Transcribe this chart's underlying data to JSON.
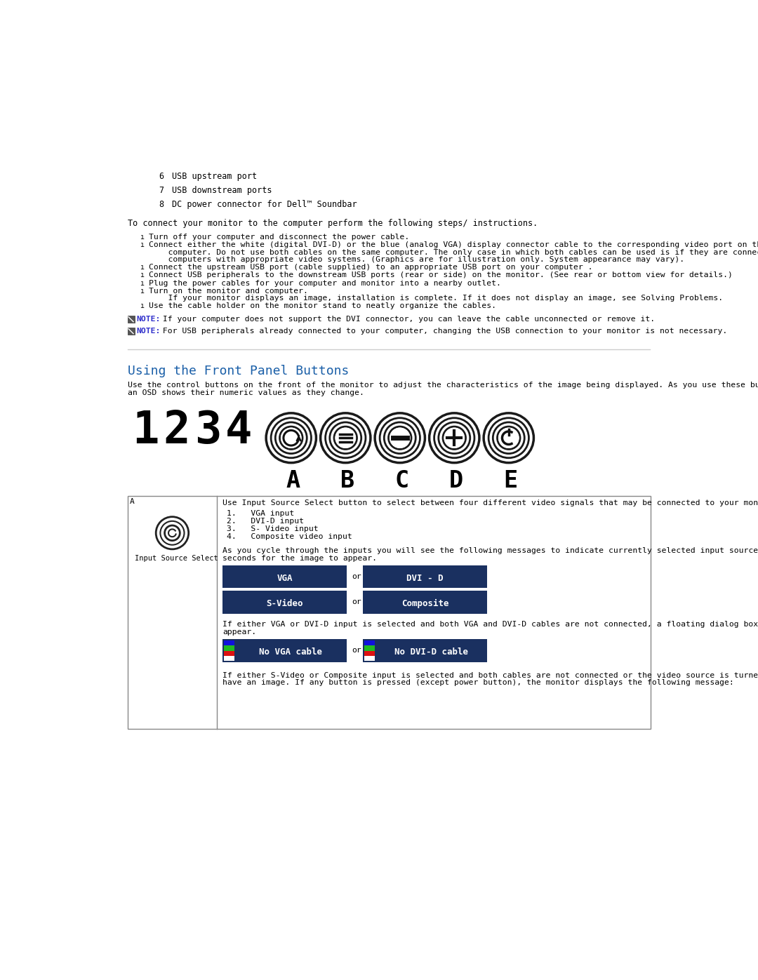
{
  "bg_color": "#ffffff",
  "text_color": "#000000",
  "blue_color": "#1a3a6b",
  "link_color": "#3333cc",
  "heading_color": "#1a5fa8",
  "section_heading": "Using the Front Panel Buttons",
  "items_top": [
    [
      "6",
      "USB upstream port"
    ],
    [
      "7",
      "USB downstream ports"
    ],
    [
      "8",
      "DC power connector for Dell™ Soundbar"
    ]
  ],
  "connect_intro": "To connect your monitor to the computer perform the following steps/ instructions.",
  "connect_steps": [
    "Turn off your computer and disconnect the power cable.",
    "Connect either the white (digital DVI-D) or the blue (analog VGA) display connector cable to the corresponding video port on the back of your\n    computer. Do not use both cables on the same computer. The only case in which both cables can be used is if they are connected to two different\n    computers with appropriate video systems. (Graphics are for illustration only. System appearance may vary).",
    "Connect the upstream USB port (cable supplied) to an appropriate USB port on your computer .",
    "Connect USB peripherals to the downstream USB ports (rear or side) on the monitor. (See rear or bottom view for details.)",
    "Plug the power cables for your computer and monitor into a nearby outlet.",
    "Turn on the monitor and computer.\n    If your monitor displays an image, installation is complete. If it does not display an image, see Solving Problems.",
    "Use the cable holder on the monitor stand to neatly organize the cables."
  ],
  "note1_label": "NOTE:",
  "note1_text": " If your computer does not support the DVI connector, you can leave the cable unconnected or remove it.",
  "note2_label": "NOTE:",
  "note2_text": " For USB peripherals already connected to your computer, changing the USB connection to your monitor is not necessary.",
  "panel_desc_line1": "Use the control buttons on the front of the monitor to adjust the characteristics of the image being displayed. As you use these buttons to adjust the controls,",
  "panel_desc_line2": "an OSD shows their numeric values as they change.",
  "button_labels_num": [
    "1",
    "2",
    "3",
    "4"
  ],
  "button_labels_alpha": [
    "A",
    "B",
    "C",
    "D",
    "E"
  ],
  "table_text1": "Use Input Source Select button to select between four different video signals that may be connected to your monitor.",
  "table_list": [
    "VGA input",
    "DVI-D input",
    "S- Video input",
    "Composite video input"
  ],
  "table_text2_line1": "As you cycle through the inputs you will see the following messages to indicate currently selected input source. It may tak",
  "table_text2_line2": "seconds for the image to appear.",
  "table_text3_line1": "If either VGA or DVI-D input is selected and both VGA and DVI-D cables are not connected, a floating dialog box as shown",
  "table_text3_line2": "appear.",
  "table_text4_line1": "If either S-Video or Composite input is selected and both cables are not connected or the video source is turned off, the s",
  "table_text4_line2": "have an image. If any button is pressed (except power button), the monitor displays the following message:",
  "vga_label": "VGA",
  "dvid_label": "DVI - D",
  "svideo_label": "S-Video",
  "composite_label": "Composite",
  "novga_label": "No VGA cable",
  "nodvid_label": "No DVI-D cable",
  "input_source_label": "Input Source Select",
  "or_label": "or"
}
